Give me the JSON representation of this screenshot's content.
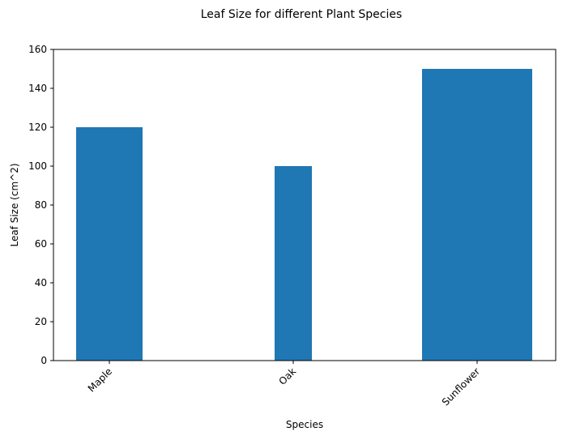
{
  "chart_data": {
    "type": "bar",
    "title": "Leaf Size for different Plant Species",
    "xlabel": "Species",
    "ylabel": "Leaf Size (cm^2)",
    "categories": [
      "Maple",
      "Oak",
      "Sunflower"
    ],
    "values": [
      120,
      100,
      150
    ],
    "ylim": [
      0,
      160
    ],
    "yticks": [
      0,
      20,
      40,
      60,
      80,
      100,
      120,
      140,
      160
    ],
    "xtick_rotation_deg": 45,
    "grid": false,
    "legend": "none",
    "colors": {
      "bar": "#1f77b4"
    }
  }
}
